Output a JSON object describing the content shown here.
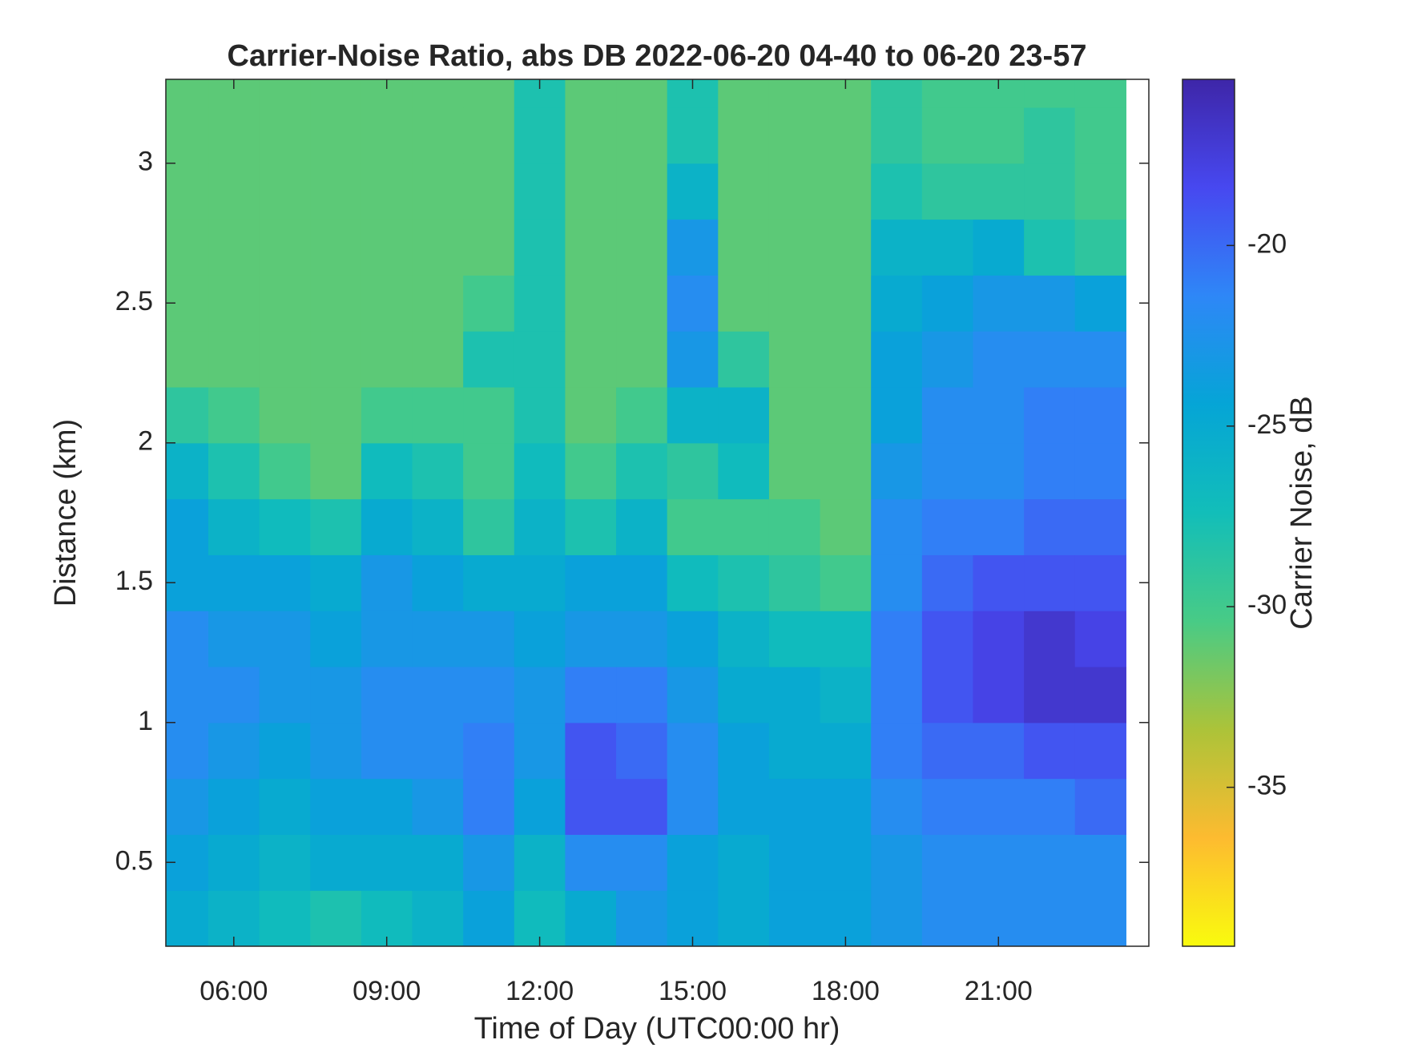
{
  "chart_data": {
    "type": "heatmap",
    "title": "Carrier-Noise Ratio, abs DB 2022-06-20 04-40 to 06-20 23-57",
    "xlabel": "Time of Day (UTC00:00 hr)",
    "ylabel": "Distance (km)",
    "colorbar_label": "Carrier Noise, dB",
    "xlim": [
      4.667,
      23.95
    ],
    "ylim": [
      0.2,
      3.3
    ],
    "clim": [
      -39.4,
      -15.4
    ],
    "xticks": [
      {
        "value": 6,
        "label": "06:00"
      },
      {
        "value": 9,
        "label": "09:00"
      },
      {
        "value": 12,
        "label": "12:00"
      },
      {
        "value": 15,
        "label": "15:00"
      },
      {
        "value": 18,
        "label": "18:00"
      },
      {
        "value": 21,
        "label": "21:00"
      }
    ],
    "yticks": [
      0.5,
      1,
      1.5,
      2,
      2.5,
      3
    ],
    "cticks": [
      -35,
      -30,
      -25,
      -20
    ],
    "colormap": [
      "#f9fb0e",
      "#fdbb30",
      "#acc339",
      "#48cb86",
      "#12beb9",
      "#05a5d6",
      "#2e87f7",
      "#4748f0",
      "#3e26a8"
    ],
    "x": [
      5,
      6,
      7,
      8,
      9,
      10,
      11,
      12,
      13,
      14,
      15,
      16,
      17,
      18,
      19,
      20,
      21,
      22,
      23
    ],
    "y": [
      0.3,
      0.5,
      0.7,
      0.9,
      1.1,
      1.3,
      1.5,
      1.7,
      1.9,
      2.1,
      2.3,
      2.5,
      2.7,
      2.9,
      3.1,
      3.3
    ],
    "z": [
      [
        -25,
        -26,
        -27,
        -28,
        -27,
        -26,
        -24,
        -27,
        -25,
        -23,
        -24,
        -25,
        -24,
        -24,
        -23,
        -22,
        -22,
        -22,
        -22
      ],
      [
        -24,
        -25,
        -26,
        -25,
        -25,
        -25,
        -23,
        -26,
        -22,
        -22,
        -24,
        -25,
        -24,
        -24,
        -23,
        -22,
        -22,
        -22,
        -22
      ],
      [
        -23,
        -24,
        -25,
        -24,
        -24,
        -23,
        -21,
        -24,
        -19,
        -19,
        -22,
        -24,
        -24,
        -24,
        -22,
        -21,
        -21,
        -21,
        -20
      ],
      [
        -22,
        -23,
        -24,
        -23,
        -22,
        -22,
        -21,
        -23,
        -19,
        -20,
        -22,
        -24,
        -25,
        -25,
        -21,
        -20,
        -20,
        -19,
        -19
      ],
      [
        -22,
        -22,
        -23,
        -23,
        -22,
        -22,
        -22,
        -23,
        -21,
        -21,
        -23,
        -25,
        -25,
        -26,
        -21,
        -19,
        -18,
        -17,
        -17
      ],
      [
        -22,
        -23,
        -23,
        -24,
        -23,
        -23,
        -23,
        -24,
        -23,
        -23,
        -24,
        -26,
        -27,
        -27,
        -21,
        -19,
        -18,
        -17,
        -18
      ],
      [
        -24,
        -24,
        -24,
        -25,
        -23,
        -24,
        -25,
        -25,
        -24,
        -24,
        -27,
        -28,
        -29,
        -30,
        -22,
        -20,
        -19,
        -19,
        -19
      ],
      [
        -24,
        -26,
        -27,
        -28,
        -25,
        -26,
        -29,
        -26,
        -28,
        -26,
        -30,
        -30,
        -30,
        -31,
        -22,
        -21,
        -21,
        -20,
        -20
      ],
      [
        -26,
        -28,
        -30,
        -31,
        -27,
        -28,
        -30,
        -27,
        -30,
        -28,
        -29,
        -27,
        -31,
        -31,
        -23,
        -22,
        -22,
        -21,
        -21
      ],
      [
        -29,
        -30,
        -31,
        -31,
        -30,
        -30,
        -30,
        -28,
        -31,
        -30,
        -26,
        -26,
        -31,
        -31,
        -24,
        -22,
        -22,
        -21,
        -21
      ],
      [
        -31,
        -31,
        -31,
        -31,
        -31,
        -31,
        -28,
        -28,
        -31,
        -31,
        -23,
        -29,
        -31,
        -31,
        -24,
        -23,
        -22,
        -22,
        -22
      ],
      [
        -31,
        -31,
        -31,
        -31,
        -31,
        -31,
        -30,
        -28,
        -31,
        -31,
        -22,
        -31,
        -31,
        -31,
        -25,
        -24,
        -23,
        -23,
        -24
      ],
      [
        -31,
        -31,
        -31,
        -31,
        -31,
        -31,
        -31,
        -28,
        -31,
        -31,
        -23,
        -31,
        -31,
        -31,
        -26,
        -26,
        -25,
        -28,
        -29
      ],
      [
        -31,
        -31,
        -31,
        -31,
        -31,
        -31,
        -31,
        -28,
        -31,
        -31,
        -26,
        -31,
        -31,
        -31,
        -28,
        -29,
        -29,
        -29,
        -30
      ],
      [
        -31,
        -31,
        -31,
        -31,
        -31,
        -31,
        -31,
        -28,
        -31,
        -31,
        -28,
        -31,
        -31,
        -31,
        -29,
        -30,
        -30,
        -29,
        -30
      ],
      [
        -31,
        -31,
        -31,
        -31,
        -31,
        -31,
        -31,
        -28,
        -31,
        -31,
        -28,
        -31,
        -31,
        -31,
        -29,
        -30,
        -30,
        -30,
        -30
      ]
    ]
  }
}
